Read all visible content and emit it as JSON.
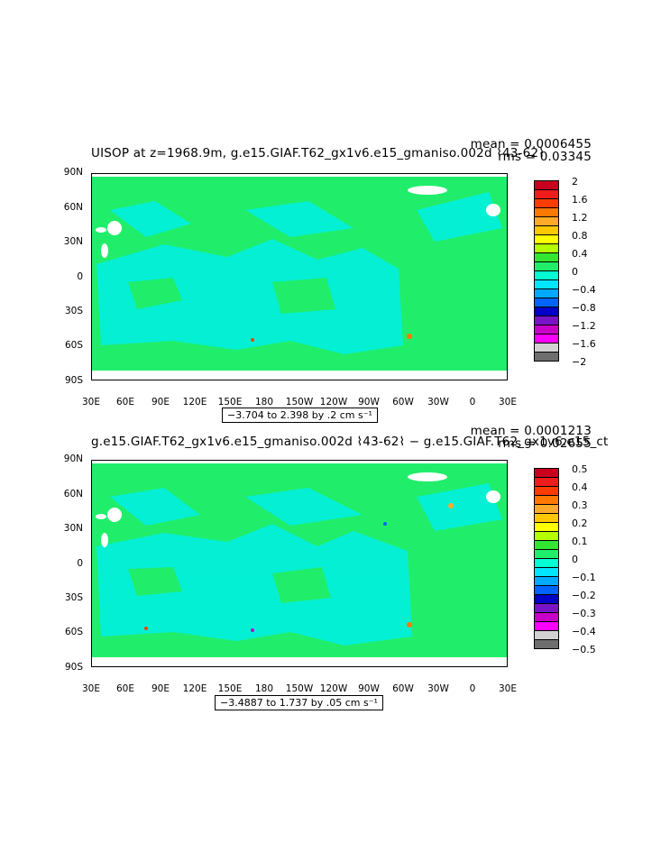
{
  "panels": [
    {
      "title": "UISOP at z=1968.9m, g.e15.GIAF.T62_gx1v6.e15_gmaniso.002d ⌇43-62⌇",
      "mean": "mean = 0.0006455",
      "rms": "rms = 0.03345",
      "range": "−3.704 to 2.398 by .2 cm s⁻¹",
      "colorbar_labels": [
        "2",
        "1.6",
        "1.2",
        "0.8",
        "0.4",
        "0",
        "−0.4",
        "−0.8",
        "−1.2",
        "−1.6",
        "−2"
      ]
    },
    {
      "title": "g.e15.GIAF.T62_gx1v6.e15_gmaniso.002d ⌇43-62⌇ − g.e15.GIAF.T62_gx1v6.e15_ct",
      "mean": "mean = 0.0001213",
      "rms": "rms = 0.02655",
      "range": "−3.4887 to 1.737 by .05 cm s⁻¹",
      "colorbar_labels": [
        "0.5",
        "0.4",
        "0.3",
        "0.2",
        "0.1",
        "0",
        "−0.1",
        "−0.2",
        "−0.3",
        "−0.4",
        "−0.5"
      ]
    }
  ],
  "lat_labels": [
    "90N",
    "60N",
    "30N",
    "0",
    "30S",
    "60S",
    "90S"
  ],
  "lon_labels": [
    "30E",
    "60E",
    "90E",
    "120E",
    "150E",
    "180",
    "150W",
    "120W",
    "90W",
    "60W",
    "30W",
    "0",
    "30E"
  ],
  "colorbar_colors": [
    "#c8001e",
    "#ee1c1c",
    "#ff3c00",
    "#ff7800",
    "#ffaa28",
    "#ffc800",
    "#ffff00",
    "#b4ff00",
    "#32e632",
    "#20ee6a",
    "#00ffd2",
    "#00e6ff",
    "#00aaff",
    "#0064ff",
    "#0000c8",
    "#7814c8",
    "#c800c8",
    "#ff00ff",
    "#d2d2d2",
    "#6e6e6e"
  ],
  "colors": {
    "ocean": "#20ee6a",
    "anomaly": "#00f0e6",
    "land": "#ffffff"
  }
}
